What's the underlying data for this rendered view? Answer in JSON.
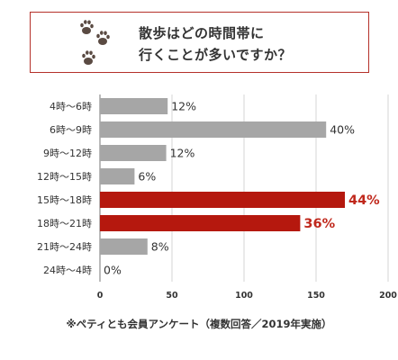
{
  "header": {
    "title_line1": "散歩はどの時間帯に",
    "title_line2": "行くことが多いですか？"
  },
  "colors": {
    "default_bar": "#a6a6a6",
    "highlight_bar": "#b5180e",
    "highlight_text": "#c0281c",
    "frame": "#b5312a",
    "paw": "#5a4a42"
  },
  "chart_data": {
    "type": "bar",
    "orientation": "horizontal",
    "categories": [
      "4時〜6時",
      "6時〜9時",
      "9時〜12時",
      "12時〜15時",
      "15時〜18時",
      "18時〜21時",
      "21時〜24時",
      "24時〜4時"
    ],
    "values": [
      47,
      157,
      46,
      24,
      170,
      139,
      33,
      0
    ],
    "data_labels": [
      "12%",
      "40%",
      "12%",
      "6%",
      "44%",
      "36%",
      "8%",
      "0%"
    ],
    "highlighted": [
      false,
      false,
      false,
      false,
      true,
      true,
      false,
      false
    ],
    "xlim": [
      0,
      200
    ],
    "xticks": [
      "0",
      "50",
      "100",
      "150",
      "200"
    ],
    "grid": true
  },
  "footnote": "※ペティとも会員アンケート（複数回答／2019年実施）"
}
